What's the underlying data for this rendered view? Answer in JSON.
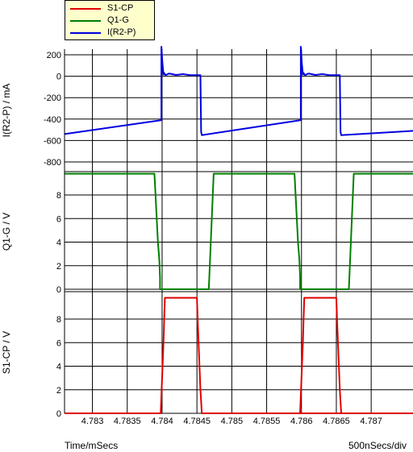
{
  "legend": {
    "items": [
      {
        "label": "S1-CP",
        "color": "#e00000"
      },
      {
        "label": "Q1-G",
        "color": "#008000"
      },
      {
        "label": "I(R2-P)",
        "color": "#0000e0"
      }
    ]
  },
  "footer": {
    "left": "Time/mSecs",
    "right": "500nSecs/div"
  },
  "chart_data": {
    "type": "line",
    "xlabel": "Time/mSecs",
    "xlim": [
      4.7826,
      4.7876
    ],
    "x_ticks": [
      "4.783",
      "4.7835",
      "4.784",
      "4.7845",
      "4.785",
      "4.7855",
      "4.786",
      "4.7865",
      "4.787"
    ],
    "x_tick_values": [
      4.783,
      4.7835,
      4.784,
      4.7845,
      4.785,
      4.7855,
      4.786,
      4.7865,
      4.787
    ],
    "grid": true,
    "legend_position": "top-left",
    "panels": [
      {
        "name": "I(R2-P)",
        "ylabel": "I(R2-P) / mA",
        "ylim": [
          -800,
          250
        ],
        "y_ticks": [
          "200",
          "0",
          "-200",
          "-400",
          "-600",
          "-800"
        ],
        "y_tick_values": [
          200,
          0,
          -200,
          -400,
          -600,
          -800
        ],
        "color": "#0000e0",
        "x": [
          4.7826,
          4.78399,
          4.78399,
          4.784005,
          4.78402,
          4.78403,
          4.78405,
          4.7841,
          4.7842,
          4.7843,
          4.7844,
          4.78455,
          4.78456,
          4.78457,
          4.78599,
          4.78599,
          4.786005,
          4.78602,
          4.78603,
          4.78605,
          4.7861,
          4.7862,
          4.7863,
          4.7864,
          4.78655,
          4.78656,
          4.78657,
          4.7876
        ],
        "y": [
          -540,
          -410,
          275,
          120,
          15,
          30,
          10,
          25,
          12,
          20,
          10,
          10,
          -520,
          -550,
          -410,
          275,
          120,
          15,
          30,
          10,
          25,
          12,
          20,
          10,
          10,
          -520,
          -550,
          -510
        ]
      },
      {
        "name": "Q1-G",
        "ylabel": "Q1-G / V",
        "ylim": [
          0,
          10
        ],
        "y_ticks": [
          "8",
          "6",
          "4",
          "2",
          "0"
        ],
        "y_tick_values": [
          8,
          6,
          4,
          2,
          0
        ],
        "color": "#008000",
        "x": [
          4.7826,
          4.78389,
          4.78394,
          4.78396,
          4.78397,
          4.78397,
          4.78467,
          4.78474,
          4.7859,
          4.78595,
          4.78597,
          4.78598,
          4.78598,
          4.78668,
          4.78675,
          4.7876
        ],
        "y": [
          9.8,
          9.8,
          4,
          2.5,
          1,
          0,
          0,
          9.8,
          9.8,
          4,
          2.5,
          1,
          0,
          0,
          9.8,
          9.8
        ]
      },
      {
        "name": "S1-CP",
        "ylabel": "S1-CP / V",
        "ylim": [
          0,
          10
        ],
        "y_ticks": [
          "8",
          "6",
          "4",
          "2",
          "0"
        ],
        "y_tick_values": [
          8,
          6,
          4,
          2,
          0
        ],
        "color": "#e00000",
        "x": [
          4.7826,
          4.78398,
          4.78402,
          4.78403,
          4.78404,
          4.7845,
          4.78451,
          4.78453,
          4.78455,
          4.78457,
          4.7876,
          4.78598,
          4.78602,
          4.78603,
          4.78604,
          4.7865,
          4.78651,
          4.78653,
          4.78655,
          4.78657
        ],
        "y": [
          0,
          0,
          6,
          8,
          9.8,
          9.8,
          8,
          5,
          2,
          0,
          0,
          0,
          6,
          8,
          9.8,
          9.8,
          8,
          5,
          2,
          0
        ]
      }
    ]
  }
}
